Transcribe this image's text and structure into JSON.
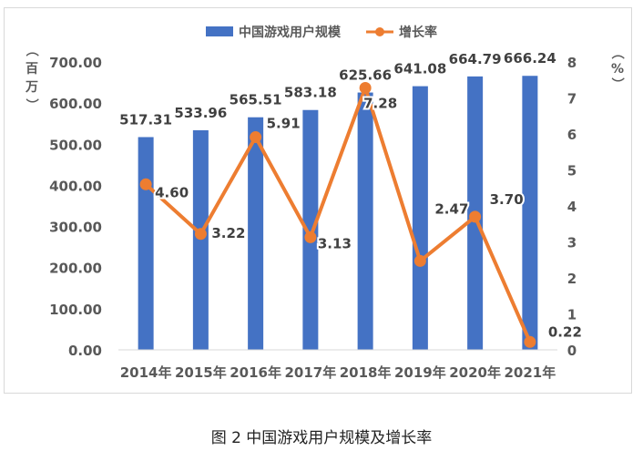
{
  "caption": "图 2 中国游戏用户规模及增长率",
  "colors": {
    "bar": "#4472c4",
    "line": "#ed7d31",
    "axis_text": "#595959",
    "label_text": "#404040",
    "gridline": "#d9d9d9"
  },
  "chart_data": {
    "type": "bar",
    "categories": [
      "2014年",
      "2015年",
      "2016年",
      "2017年",
      "2018年",
      "2019年",
      "2020年",
      "2021年"
    ],
    "series": [
      {
        "name": "中国游戏用户规模",
        "type": "bar",
        "axis": "left",
        "values": [
          517.31,
          533.96,
          565.51,
          583.18,
          625.66,
          641.08,
          664.79,
          666.24
        ],
        "labels": [
          "517.31",
          "533.96",
          "565.51",
          "583.18",
          "625.66",
          "641.08",
          "664.79",
          "666.24"
        ]
      },
      {
        "name": "增长率",
        "type": "line",
        "axis": "right",
        "values": [
          4.6,
          3.22,
          5.91,
          3.13,
          7.28,
          2.47,
          3.7,
          0.22
        ],
        "labels": [
          "4.60",
          "3.22",
          "5.91",
          "3.13",
          "7.28",
          "2.47",
          "3.70",
          "0.22"
        ]
      }
    ],
    "y_left": {
      "unit": "（百万）",
      "ylim": [
        0,
        700
      ],
      "ticks": [
        "0.00",
        "100.00",
        "200.00",
        "300.00",
        "400.00",
        "500.00",
        "600.00",
        "700.00"
      ]
    },
    "y_right": {
      "unit": "（%）",
      "ylim": [
        0,
        8
      ],
      "ticks": [
        "0",
        "1",
        "2",
        "3",
        "4",
        "5",
        "6",
        "7",
        "8"
      ]
    },
    "legend_position": "top",
    "grid": false
  }
}
